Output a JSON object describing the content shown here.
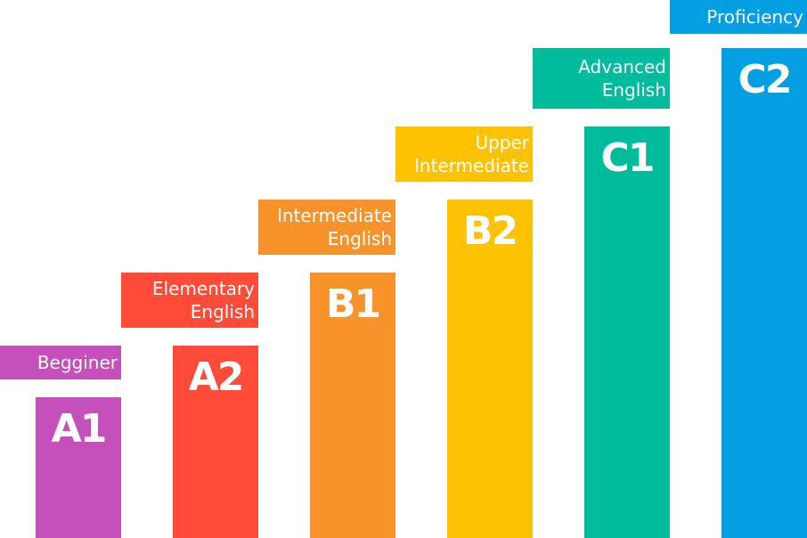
{
  "levels": [
    {
      "code": "A1",
      "label_lines": [
        "Begginer"
      ],
      "color": "#c54fbb"
    },
    {
      "code": "A2",
      "label_lines": [
        "Elementary",
        "English"
      ],
      "color": "#ff4b37"
    },
    {
      "code": "B1",
      "label_lines": [
        "Intermediate",
        "English"
      ],
      "color": "#f8922a"
    },
    {
      "code": "B2",
      "label_lines": [
        "Upper",
        "Intermediate"
      ],
      "color": "#fdc202"
    },
    {
      "code": "C1",
      "label_lines": [
        "Advanced",
        "English"
      ],
      "color": "#00bb9c"
    },
    {
      "code": "C2",
      "label_lines": [
        "Proficiency"
      ],
      "color": "#049ee2"
    }
  ]
}
